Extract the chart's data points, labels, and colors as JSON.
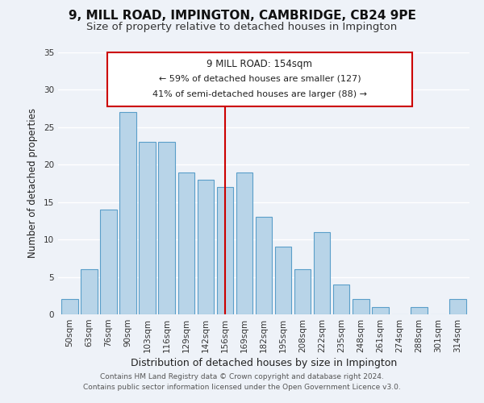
{
  "title": "9, MILL ROAD, IMPINGTON, CAMBRIDGE, CB24 9PE",
  "subtitle": "Size of property relative to detached houses in Impington",
  "xlabel": "Distribution of detached houses by size in Impington",
  "ylabel": "Number of detached properties",
  "bar_labels": [
    "50sqm",
    "63sqm",
    "76sqm",
    "90sqm",
    "103sqm",
    "116sqm",
    "129sqm",
    "142sqm",
    "156sqm",
    "169sqm",
    "182sqm",
    "195sqm",
    "208sqm",
    "222sqm",
    "235sqm",
    "248sqm",
    "261sqm",
    "274sqm",
    "288sqm",
    "301sqm",
    "314sqm"
  ],
  "bar_values": [
    2,
    6,
    14,
    27,
    23,
    23,
    19,
    18,
    17,
    19,
    13,
    9,
    6,
    11,
    4,
    2,
    1,
    0,
    1,
    0,
    2
  ],
  "bar_color": "#b8d4e8",
  "bar_edgecolor": "#5a9ec9",
  "highlight_index": 8,
  "vline_color": "#cc0000",
  "ylim": [
    0,
    35
  ],
  "yticks": [
    0,
    5,
    10,
    15,
    20,
    25,
    30,
    35
  ],
  "annotation_title": "9 MILL ROAD: 154sqm",
  "annotation_line1": "← 59% of detached houses are smaller (127)",
  "annotation_line2": "41% of semi-detached houses are larger (88) →",
  "annotation_box_color": "#ffffff",
  "annotation_box_edgecolor": "#cc0000",
  "footer_line1": "Contains HM Land Registry data © Crown copyright and database right 2024.",
  "footer_line2": "Contains public sector information licensed under the Open Government Licence v3.0.",
  "background_color": "#eef2f8",
  "grid_color": "#ffffff",
  "title_fontsize": 11,
  "subtitle_fontsize": 9.5,
  "xlabel_fontsize": 9,
  "ylabel_fontsize": 8.5,
  "tick_fontsize": 7.5,
  "footer_fontsize": 6.5,
  "ann_title_fontsize": 8.5,
  "ann_text_fontsize": 8
}
